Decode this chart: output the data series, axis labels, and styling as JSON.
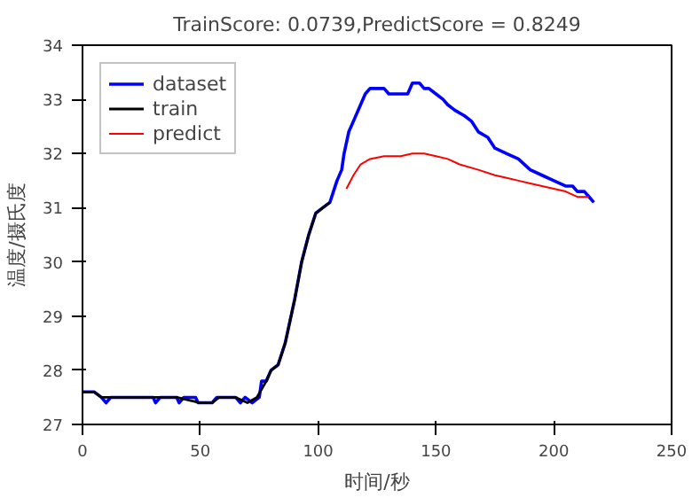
{
  "chart_data": {
    "type": "line",
    "title": "TrainScore: 0.0739,PredictScore = 0.8249",
    "xlabel": "时间/秒",
    "ylabel": "温度/摄氏度",
    "xlim": [
      0,
      250
    ],
    "ylim": [
      27,
      34
    ],
    "xticks": [
      0,
      50,
      100,
      150,
      200,
      250
    ],
    "yticks": [
      27,
      28,
      29,
      30,
      31,
      32,
      33,
      34
    ],
    "grid": false,
    "legend": "top left",
    "series": [
      {
        "name": "dataset",
        "color": "#0000ff",
        "x": [
          0,
          5,
          8,
          10,
          12,
          30,
          31,
          33,
          40,
          41,
          43,
          48,
          49,
          55,
          57,
          65,
          67,
          69,
          72,
          75,
          76,
          78,
          80,
          83,
          86,
          90,
          93,
          96,
          99,
          102,
          105,
          108,
          110,
          111,
          113,
          115,
          118,
          120,
          122,
          128,
          130,
          138,
          140,
          143,
          145,
          147,
          150,
          153,
          155,
          158,
          162,
          165,
          168,
          172,
          175,
          180,
          185,
          190,
          195,
          200,
          205,
          208,
          210,
          213,
          215,
          217
        ],
        "values": [
          27.6,
          27.6,
          27.5,
          27.4,
          27.5,
          27.5,
          27.4,
          27.5,
          27.5,
          27.4,
          27.5,
          27.5,
          27.4,
          27.4,
          27.5,
          27.5,
          27.4,
          27.5,
          27.4,
          27.5,
          27.8,
          27.8,
          28.0,
          28.1,
          28.5,
          29.3,
          30.0,
          30.5,
          30.9,
          31.0,
          31.1,
          31.5,
          31.7,
          32.0,
          32.4,
          32.6,
          32.9,
          33.1,
          33.2,
          33.2,
          33.1,
          33.1,
          33.3,
          33.3,
          33.2,
          33.2,
          33.1,
          33.0,
          32.9,
          32.8,
          32.7,
          32.6,
          32.4,
          32.3,
          32.1,
          32.0,
          31.9,
          31.7,
          31.6,
          31.5,
          31.4,
          31.4,
          31.3,
          31.3,
          31.2,
          31.1
        ]
      },
      {
        "name": "train",
        "color": "#000000",
        "x": [
          0,
          5,
          8,
          20,
          40,
          50,
          55,
          58,
          65,
          70,
          74,
          78,
          80,
          83,
          86,
          90,
          93,
          96,
          99,
          102,
          105
        ],
        "values": [
          27.6,
          27.6,
          27.5,
          27.5,
          27.5,
          27.4,
          27.4,
          27.5,
          27.5,
          27.4,
          27.5,
          27.8,
          28.0,
          28.1,
          28.5,
          29.3,
          30.0,
          30.5,
          30.9,
          31.0,
          31.1
        ]
      },
      {
        "name": "predict",
        "color": "#ff0000",
        "x": [
          112,
          115,
          118,
          122,
          128,
          135,
          140,
          145,
          150,
          155,
          160,
          168,
          175,
          180,
          185,
          190,
          195,
          200,
          205,
          210,
          215
        ],
        "values": [
          31.35,
          31.6,
          31.8,
          31.9,
          31.95,
          31.95,
          32.0,
          32.0,
          31.95,
          31.9,
          31.8,
          31.7,
          31.6,
          31.55,
          31.5,
          31.45,
          31.4,
          31.35,
          31.3,
          31.2,
          31.2
        ]
      }
    ]
  }
}
